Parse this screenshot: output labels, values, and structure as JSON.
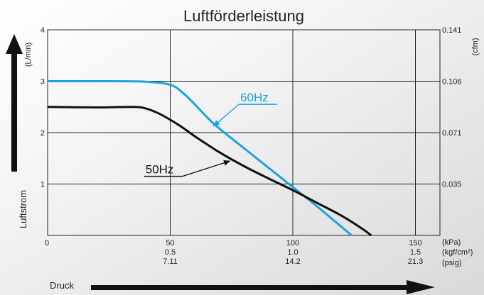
{
  "chart_data": {
    "type": "line",
    "title": "Luftförderleistung",
    "ylabel": "Luftstrom",
    "xlabel": "Druck",
    "x_unit_primary": "(kPa)",
    "x_unit_secondary": "(kgf/cm²)",
    "x_unit_tertiary": "(psig)",
    "y_unit_left": "(L/min)",
    "y_unit_right": "(cfm)",
    "xlim": [
      0,
      160
    ],
    "ylim": [
      0,
      4
    ],
    "grid": true,
    "x_ticks": [
      {
        "value": 50,
        "kpa": "50",
        "kgf": "0.5",
        "psig": "7.11"
      },
      {
        "value": 100,
        "kpa": "100",
        "kgf": "1.0",
        "psig": "14.2"
      },
      {
        "value": 150,
        "kpa": "150",
        "kgf": "1.5",
        "psig": "21.3"
      }
    ],
    "x_origin_label": "0",
    "y_ticks_left": [
      {
        "value": 1,
        "label": "1"
      },
      {
        "value": 2,
        "label": "2"
      },
      {
        "value": 3,
        "label": "3"
      },
      {
        "value": 4,
        "label": "4"
      }
    ],
    "y_ticks_right": [
      {
        "value": 1,
        "label": "0.035"
      },
      {
        "value": 2,
        "label": "0.071"
      },
      {
        "value": 3,
        "label": "0.106"
      },
      {
        "value": 4,
        "label": "0.141"
      }
    ],
    "series": [
      {
        "name": "60Hz",
        "color": "#1ca3dc",
        "x": [
          0,
          20,
          40,
          50,
          55,
          60,
          65,
          70,
          80,
          90,
          100,
          110,
          120,
          124
        ],
        "y": [
          3.0,
          3.0,
          2.99,
          2.93,
          2.78,
          2.55,
          2.3,
          2.08,
          1.7,
          1.32,
          0.94,
          0.56,
          0.16,
          0.0
        ]
      },
      {
        "name": "50Hz",
        "color": "#111111",
        "x": [
          0,
          20,
          35,
          40,
          45,
          50,
          55,
          60,
          70,
          80,
          90,
          100,
          110,
          120,
          128,
          132
        ],
        "y": [
          2.5,
          2.49,
          2.5,
          2.47,
          2.38,
          2.25,
          2.1,
          1.93,
          1.62,
          1.35,
          1.11,
          0.88,
          0.63,
          0.38,
          0.14,
          0.0
        ]
      }
    ],
    "series_labels": [
      {
        "name": "60Hz",
        "label_x": 78,
        "label_y": 2.55,
        "arrow_x": 67.5,
        "arrow_y": 2.12
      },
      {
        "name": "50Hz",
        "label_x": 55,
        "label_y": 1.15,
        "arrow_x": 74.5,
        "arrow_y": 1.45
      }
    ]
  }
}
